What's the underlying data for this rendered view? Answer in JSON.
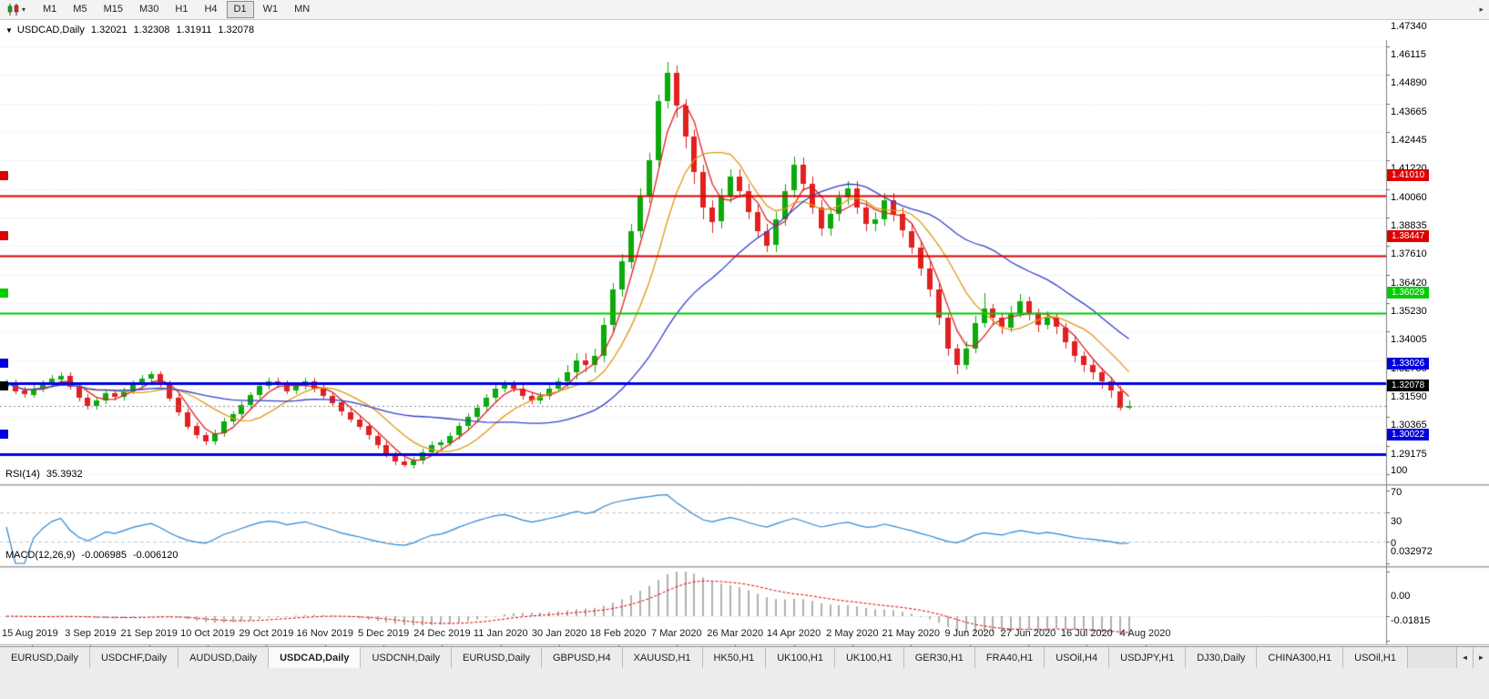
{
  "toolbar": {
    "chart_type_icon": "candlestick-chart-icon",
    "timeframes": [
      "M1",
      "M5",
      "M15",
      "M30",
      "H1",
      "H4",
      "D1",
      "W1",
      "MN"
    ],
    "active_timeframe": "D1"
  },
  "icons": {
    "collapse_glyph": "▼",
    "caret_glyph": "▾",
    "overflow_glyph": "▸",
    "tab_scroll_left_glyph": "◄",
    "tab_scroll_right_glyph": "►"
  },
  "chart": {
    "header": {
      "title": "USDCAD,Daily",
      "open": "1.32021",
      "high": "1.32308",
      "low": "1.31911",
      "close": "1.32078"
    }
  },
  "rsi": {
    "title": "RSI(14)",
    "value": "35.3932"
  },
  "macd": {
    "title": "MACD(12,26,9)",
    "value_main": "-0.006985",
    "value_signal": "-0.006120"
  },
  "tabs": {
    "items": [
      "EURUSD,Daily",
      "USDCHF,Daily",
      "AUDUSD,Daily",
      "USDCAD,Daily",
      "USDCNH,Daily",
      "EURUSD,Daily",
      "GBPUSD,H4",
      "XAUUSD,H1",
      "HK50,H1",
      "UK100,H1",
      "UK100,H1",
      "GER30,H1",
      "FRA40,H1",
      "USOil,H4",
      "USDJPY,H1",
      "DJ30,Daily",
      "CHINA300,H1",
      "USOil,H1"
    ],
    "active_index": 3
  },
  "chart_data": {
    "type": "candlestick",
    "title": "USDCAD,Daily",
    "up_color": "#0caa0c",
    "down_color": "#e22020",
    "grid_color": "#e0e0e0",
    "x_labels": [
      "15 Aug 2019",
      "3 Sep 2019",
      "21 Sep 2019",
      "10 Oct 2019",
      "29 Oct 2019",
      "16 Nov 2019",
      "5 Dec 2019",
      "24 Dec 2019",
      "11 Jan 2020",
      "30 Jan 2020",
      "18 Feb 2020",
      "7 Mar 2020",
      "26 Mar 2020",
      "14 Apr 2020",
      "2 May 2020",
      "21 May 2020",
      "9 Jun 2020",
      "27 Jun 2020",
      "16 Jul 2020",
      "4 Aug 2020"
    ],
    "price_axis": {
      "ticks": [
        "1.47340",
        "1.46115",
        "1.44890",
        "1.43665",
        "1.42445",
        "1.41220",
        "1.40060",
        "1.38835",
        "1.37610",
        "1.36420",
        "1.35230",
        "1.34005",
        "1.32780",
        "1.31590",
        "1.30365",
        "1.29175"
      ],
      "top_value": 1.4734,
      "bottom_value": 1.29175
    },
    "levels": [
      {
        "price": 1.4101,
        "label": "1.41010",
        "color": "#dd0000",
        "width": 2
      },
      {
        "price": 1.38447,
        "label": "1.38447",
        "color": "#dd0000",
        "width": 2
      },
      {
        "price": 1.36029,
        "label": "1.36029",
        "color": "#00cc00",
        "width": 2
      },
      {
        "price": 1.33026,
        "label": "1.33026",
        "color": "#0000dd",
        "width": 3
      },
      {
        "price": 1.30022,
        "label": "1.30022",
        "color": "#0000dd",
        "width": 3
      }
    ],
    "last_price": {
      "value": 1.32078,
      "label": "1.32078",
      "color": "#000000"
    },
    "moving_averages": [
      {
        "name": "ma-fast",
        "period": 4,
        "color": "#dd2222"
      },
      {
        "name": "ma-medium",
        "period": 9,
        "color": "#e09a10"
      },
      {
        "name": "ma-slow",
        "period": 24,
        "color": "#3340cc"
      }
    ],
    "rsi": {
      "period": 14,
      "current": 35.3932,
      "color": "#2e86d0",
      "guide_levels": [
        70,
        30
      ],
      "scale_ticks": [
        {
          "v": 100,
          "label": "100"
        },
        {
          "v": 70,
          "label": "70"
        },
        {
          "v": 30,
          "label": "30"
        },
        {
          "v": 0,
          "label": "0"
        }
      ]
    },
    "macd": {
      "fast": 12,
      "slow": 26,
      "signal": 9,
      "current_main": -0.006985,
      "current_signal": -0.00612,
      "hist_color": "#b0b0b0",
      "signal_color": "#dd0000",
      "scale_ticks": [
        {
          "v": 0.032972,
          "label": "0.032972"
        },
        {
          "v": 0,
          "label": "0.00"
        },
        {
          "v": -0.01815,
          "label": "-0.01815"
        }
      ]
    },
    "candles": [
      [
        1.329,
        1.332,
        1.3282,
        1.3305
      ],
      [
        1.3305,
        1.332,
        1.3257,
        1.3272
      ],
      [
        1.3272,
        1.3287,
        1.3241,
        1.3256
      ],
      [
        1.3256,
        1.3297,
        1.3241,
        1.3282
      ],
      [
        1.3282,
        1.3316,
        1.3267,
        1.3301
      ],
      [
        1.3301,
        1.3337,
        1.3286,
        1.3322
      ],
      [
        1.3322,
        1.3351,
        1.3307,
        1.3336
      ],
      [
        1.3336,
        1.3351,
        1.3276,
        1.3291
      ],
      [
        1.3291,
        1.3306,
        1.3227,
        1.3242
      ],
      [
        1.3242,
        1.3257,
        1.3191,
        1.3206
      ],
      [
        1.3206,
        1.3246,
        1.3191,
        1.3231
      ],
      [
        1.3231,
        1.3277,
        1.3216,
        1.3262
      ],
      [
        1.3262,
        1.3277,
        1.3231,
        1.3246
      ],
      [
        1.3246,
        1.3286,
        1.3231,
        1.3271
      ],
      [
        1.3271,
        1.3316,
        1.3256,
        1.3301
      ],
      [
        1.3301,
        1.3337,
        1.3286,
        1.3322
      ],
      [
        1.3322,
        1.3356,
        1.3307,
        1.3341
      ],
      [
        1.3341,
        1.3356,
        1.3287,
        1.3302
      ],
      [
        1.3302,
        1.3317,
        1.3227,
        1.3242
      ],
      [
        1.3242,
        1.3257,
        1.3166,
        1.3181
      ],
      [
        1.3181,
        1.3196,
        1.3106,
        1.3121
      ],
      [
        1.3121,
        1.3136,
        1.3067,
        1.3082
      ],
      [
        1.3082,
        1.3097,
        1.3041,
        1.3056
      ],
      [
        1.3056,
        1.3107,
        1.3041,
        1.3092
      ],
      [
        1.3092,
        1.3156,
        1.3077,
        1.3141
      ],
      [
        1.3141,
        1.3186,
        1.3126,
        1.3171
      ],
      [
        1.3171,
        1.3226,
        1.3156,
        1.3211
      ],
      [
        1.3211,
        1.3267,
        1.3196,
        1.3252
      ],
      [
        1.3252,
        1.3306,
        1.3237,
        1.3291
      ],
      [
        1.3291,
        1.3327,
        1.3276,
        1.3312
      ],
      [
        1.3312,
        1.3327,
        1.3286,
        1.3301
      ],
      [
        1.3301,
        1.3316,
        1.3257,
        1.3272
      ],
      [
        1.3272,
        1.3306,
        1.3257,
        1.3291
      ],
      [
        1.3291,
        1.3326,
        1.3276,
        1.3311
      ],
      [
        1.3311,
        1.3326,
        1.3266,
        1.3281
      ],
      [
        1.3281,
        1.3296,
        1.3236,
        1.3251
      ],
      [
        1.3251,
        1.3266,
        1.3206,
        1.3221
      ],
      [
        1.3221,
        1.3236,
        1.3166,
        1.3181
      ],
      [
        1.3181,
        1.3196,
        1.3136,
        1.3151
      ],
      [
        1.3151,
        1.3166,
        1.3106,
        1.3121
      ],
      [
        1.3121,
        1.3136,
        1.3066,
        1.3081
      ],
      [
        1.3081,
        1.3096,
        1.3026,
        1.3041
      ],
      [
        1.3041,
        1.3056,
        1.2986,
        1.3001
      ],
      [
        1.3001,
        1.3016,
        1.2956,
        1.2971
      ],
      [
        1.2971,
        1.2986,
        1.2948,
        1.2956
      ],
      [
        1.2956,
        1.2991,
        1.2941,
        1.2976
      ],
      [
        1.2976,
        1.3026,
        1.2961,
        1.3011
      ],
      [
        1.3011,
        1.3056,
        1.2996,
        1.3041
      ],
      [
        1.3041,
        1.3066,
        1.3026,
        1.3051
      ],
      [
        1.3051,
        1.3096,
        1.3036,
        1.3081
      ],
      [
        1.3081,
        1.3136,
        1.3066,
        1.3121
      ],
      [
        1.3121,
        1.3176,
        1.3106,
        1.3161
      ],
      [
        1.3161,
        1.3216,
        1.3146,
        1.3201
      ],
      [
        1.3201,
        1.3256,
        1.3186,
        1.3241
      ],
      [
        1.3241,
        1.3296,
        1.3226,
        1.3281
      ],
      [
        1.3281,
        1.3316,
        1.3266,
        1.3301
      ],
      [
        1.3301,
        1.3316,
        1.3266,
        1.3281
      ],
      [
        1.3281,
        1.3296,
        1.3236,
        1.3251
      ],
      [
        1.3251,
        1.3266,
        1.3216,
        1.3231
      ],
      [
        1.3231,
        1.3266,
        1.3216,
        1.3251
      ],
      [
        1.3251,
        1.3296,
        1.3236,
        1.3281
      ],
      [
        1.3281,
        1.3326,
        1.3266,
        1.3311
      ],
      [
        1.3311,
        1.3381,
        1.3281,
        1.3351
      ],
      [
        1.3351,
        1.3431,
        1.3321,
        1.3401
      ],
      [
        1.3401,
        1.3431,
        1.3351,
        1.3381
      ],
      [
        1.3381,
        1.3451,
        1.3351,
        1.3421
      ],
      [
        1.3421,
        1.3581,
        1.3391,
        1.3551
      ],
      [
        1.3551,
        1.3731,
        1.3521,
        1.3701
      ],
      [
        1.3701,
        1.3851,
        1.3671,
        1.3821
      ],
      [
        1.3821,
        1.3981,
        1.3791,
        1.3951
      ],
      [
        1.3951,
        1.4131,
        1.3921,
        1.4101
      ],
      [
        1.4101,
        1.4281,
        1.4071,
        1.4251
      ],
      [
        1.4251,
        1.4531,
        1.4221,
        1.4501
      ],
      [
        1.4501,
        1.4668,
        1.4471,
        1.4621
      ],
      [
        1.4621,
        1.4651,
        1.4431,
        1.4481
      ],
      [
        1.4481,
        1.4511,
        1.4301,
        1.4351
      ],
      [
        1.4351,
        1.4381,
        1.4151,
        1.4201
      ],
      [
        1.4201,
        1.4231,
        1.4001,
        1.4051
      ],
      [
        1.4051,
        1.4081,
        1.3941,
        1.3991
      ],
      [
        1.3991,
        1.4131,
        1.3961,
        1.4101
      ],
      [
        1.4101,
        1.4211,
        1.4071,
        1.4181
      ],
      [
        1.4181,
        1.4211,
        1.4091,
        1.4121
      ],
      [
        1.4121,
        1.4151,
        1.4001,
        1.4031
      ],
      [
        1.4031,
        1.4061,
        1.3921,
        1.3951
      ],
      [
        1.3951,
        1.3981,
        1.3861,
        1.3891
      ],
      [
        1.3891,
        1.4031,
        1.3861,
        1.4001
      ],
      [
        1.4001,
        1.4151,
        1.3971,
        1.4121
      ],
      [
        1.4121,
        1.4265,
        1.4091,
        1.4231
      ],
      [
        1.4231,
        1.4261,
        1.4121,
        1.4151
      ],
      [
        1.4151,
        1.4181,
        1.4021,
        1.4051
      ],
      [
        1.4051,
        1.4081,
        1.3931,
        1.3961
      ],
      [
        1.3961,
        1.4051,
        1.3931,
        1.4021
      ],
      [
        1.4021,
        1.4121,
        1.3991,
        1.4091
      ],
      [
        1.4091,
        1.4161,
        1.4061,
        1.4131
      ],
      [
        1.4131,
        1.4161,
        1.4021,
        1.4051
      ],
      [
        1.4051,
        1.4081,
        1.3951,
        1.3981
      ],
      [
        1.3981,
        1.4031,
        1.3951,
        1.4001
      ],
      [
        1.4001,
        1.4111,
        1.3971,
        1.4081
      ],
      [
        1.4081,
        1.4111,
        1.3991,
        1.4021
      ],
      [
        1.4021,
        1.4051,
        1.3921,
        1.3951
      ],
      [
        1.3951,
        1.3981,
        1.3851,
        1.3881
      ],
      [
        1.3881,
        1.3911,
        1.3761,
        1.3791
      ],
      [
        1.3791,
        1.3821,
        1.3671,
        1.3701
      ],
      [
        1.3701,
        1.3731,
        1.3551,
        1.3581
      ],
      [
        1.3581,
        1.3601,
        1.3421,
        1.3451
      ],
      [
        1.3451,
        1.3471,
        1.3341,
        1.3381
      ],
      [
        1.3381,
        1.3481,
        1.3361,
        1.3451
      ],
      [
        1.3451,
        1.3591,
        1.3431,
        1.3561
      ],
      [
        1.3561,
        1.3686,
        1.3541,
        1.3621
      ],
      [
        1.3621,
        1.3641,
        1.3551,
        1.3581
      ],
      [
        1.3581,
        1.3601,
        1.3511,
        1.3541
      ],
      [
        1.3541,
        1.3631,
        1.3521,
        1.3601
      ],
      [
        1.3601,
        1.3681,
        1.3581,
        1.3651
      ],
      [
        1.3651,
        1.3671,
        1.3571,
        1.3601
      ],
      [
        1.3601,
        1.3621,
        1.3521,
        1.3551
      ],
      [
        1.3551,
        1.3611,
        1.3531,
        1.3581
      ],
      [
        1.3581,
        1.3601,
        1.3511,
        1.3541
      ],
      [
        1.3541,
        1.3561,
        1.3451,
        1.3481
      ],
      [
        1.3481,
        1.3501,
        1.3391,
        1.3421
      ],
      [
        1.3421,
        1.3441,
        1.3351,
        1.3381
      ],
      [
        1.3381,
        1.3401,
        1.3321,
        1.3351
      ],
      [
        1.3351,
        1.3371,
        1.3281,
        1.3311
      ],
      [
        1.3311,
        1.3331,
        1.3241,
        1.3271
      ],
      [
        1.3271,
        1.3291,
        1.3187,
        1.3202
      ],
      [
        1.3202,
        1.3231,
        1.3191,
        1.3208
      ]
    ]
  }
}
